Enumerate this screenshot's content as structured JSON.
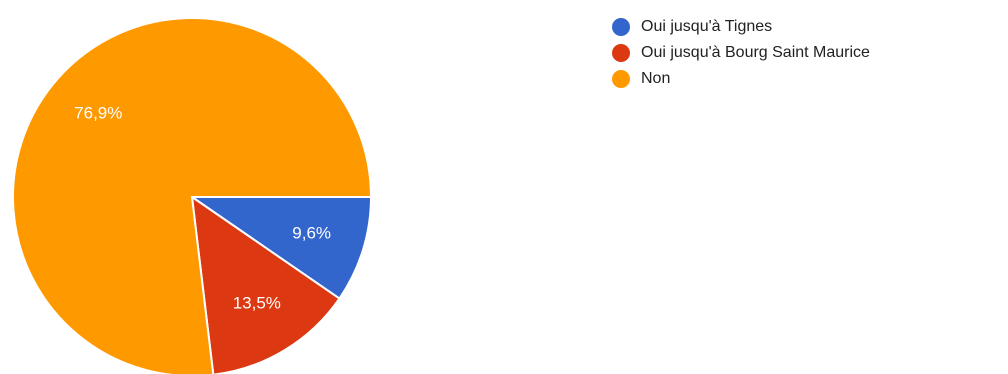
{
  "chart_data": {
    "type": "pie",
    "title": "",
    "slices": [
      {
        "label": "Oui jusqu'à Tignes",
        "value": 9.6,
        "value_label": "9,6%",
        "color": "#3366cc"
      },
      {
        "label": "Oui jusqu'à Bourg Saint Maurice",
        "value": 13.5,
        "value_label": "13,5%",
        "color": "#dc3912"
      },
      {
        "label": "Non",
        "value": 76.9,
        "value_label": "76,9%",
        "color": "#ff9900"
      }
    ],
    "legend_position": "right"
  },
  "legend": {
    "items": [
      {
        "label": "Oui jusqu'à Tignes",
        "color": "#3366cc"
      },
      {
        "label": "Oui jusqu'à Bourg Saint Maurice",
        "color": "#dc3912"
      },
      {
        "label": "Non",
        "color": "#ff9900"
      }
    ]
  }
}
